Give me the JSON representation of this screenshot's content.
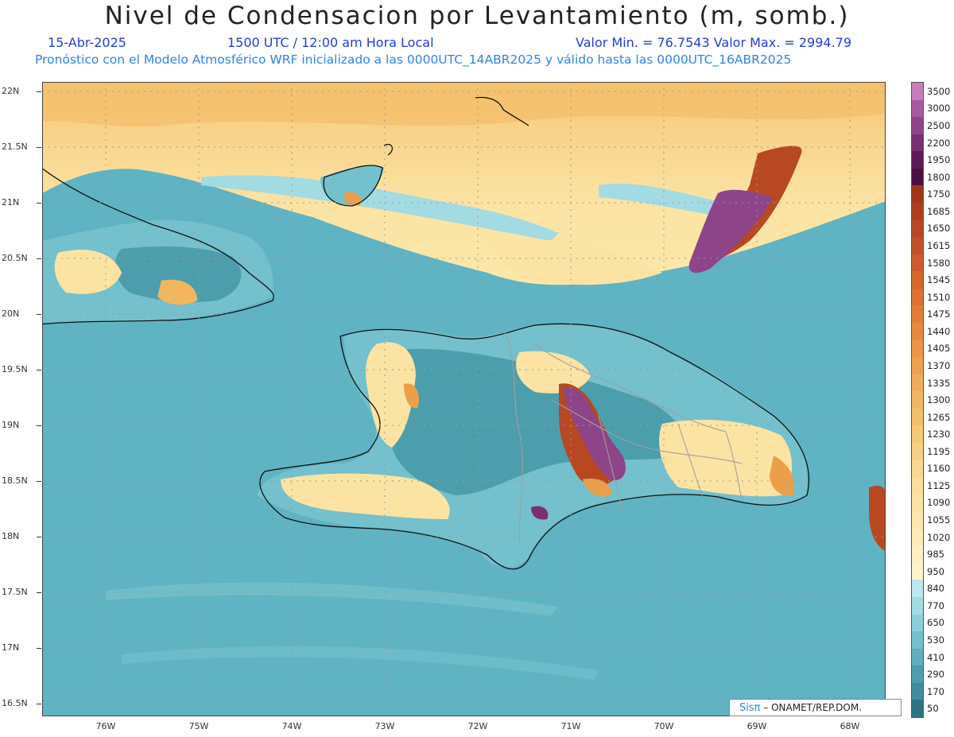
{
  "header": {
    "title": "Nivel de Condensacion por Levantamiento (m, somb.)",
    "date": "15-Abr-2025",
    "time": "1500 UTC / 12:00 am Hora Local",
    "min_max": "Valor Min. = 76.7543  Valor Max. = 2994.79",
    "model_info": "Pronóstico con el Modelo Atmosférico WRF inicializado a las 0000UTC_14ABR2025 y válido hasta las  0000UTC_16ABR2025"
  },
  "map": {
    "lat_labels": [
      "22N",
      "21.5N",
      "21N",
      "20.5N",
      "20N",
      "19.5N",
      "19N",
      "18.5N",
      "18N",
      "17.5N",
      "17N",
      "16.5N"
    ],
    "lon_labels": [
      "76W",
      "75W",
      "74W",
      "73W",
      "72W",
      "71W",
      "70W",
      "69W",
      "68W"
    ],
    "colors": {
      "ocean": "#5fb3c3",
      "land_low": "#4a97a8",
      "yellow": "#fbe89a",
      "orange": "#eaa04a",
      "brown": "#b84a25",
      "purple": "#7e3a78"
    }
  },
  "colorbar": {
    "labels": [
      "3500",
      "3000",
      "2500",
      "2200",
      "1950",
      "1800",
      "1750",
      "1685",
      "1650",
      "1615",
      "1580",
      "1545",
      "1510",
      "1475",
      "1440",
      "1405",
      "1370",
      "1335",
      "1300",
      "1265",
      "1230",
      "1195",
      "1160",
      "1125",
      "1090",
      "1055",
      "1020",
      "985",
      "950",
      "840",
      "770",
      "650",
      "530",
      "410",
      "290",
      "170",
      "50"
    ],
    "colors": [
      "#c77dbd",
      "#a65aa0",
      "#8e4489",
      "#7a2f72",
      "#5e1a55",
      "#4c0f40",
      "#a0361b",
      "#ac3f1e",
      "#b84822",
      "#c25226",
      "#cc5c2a",
      "#d5672e",
      "#dc7233",
      "#e27d38",
      "#e7893e",
      "#eb9545",
      "#eea14d",
      "#f0ac56",
      "#f2b660",
      "#f4bf6b",
      "#f6c877",
      "#f8d083",
      "#f9d88f",
      "#fade9a",
      "#fbe3a4",
      "#fce8af",
      "#fcecb9",
      "#fdf0c3",
      "#fdf3cc",
      "#bfe6ec",
      "#a3dbe3",
      "#8ccfd9",
      "#74c0cc",
      "#5fb0bd",
      "#4d9eac",
      "#3f8c9a",
      "#2f7486"
    ]
  },
  "credit": {
    "brand": "Sisπ",
    "text": "– ONAMET/REP.DOM."
  }
}
